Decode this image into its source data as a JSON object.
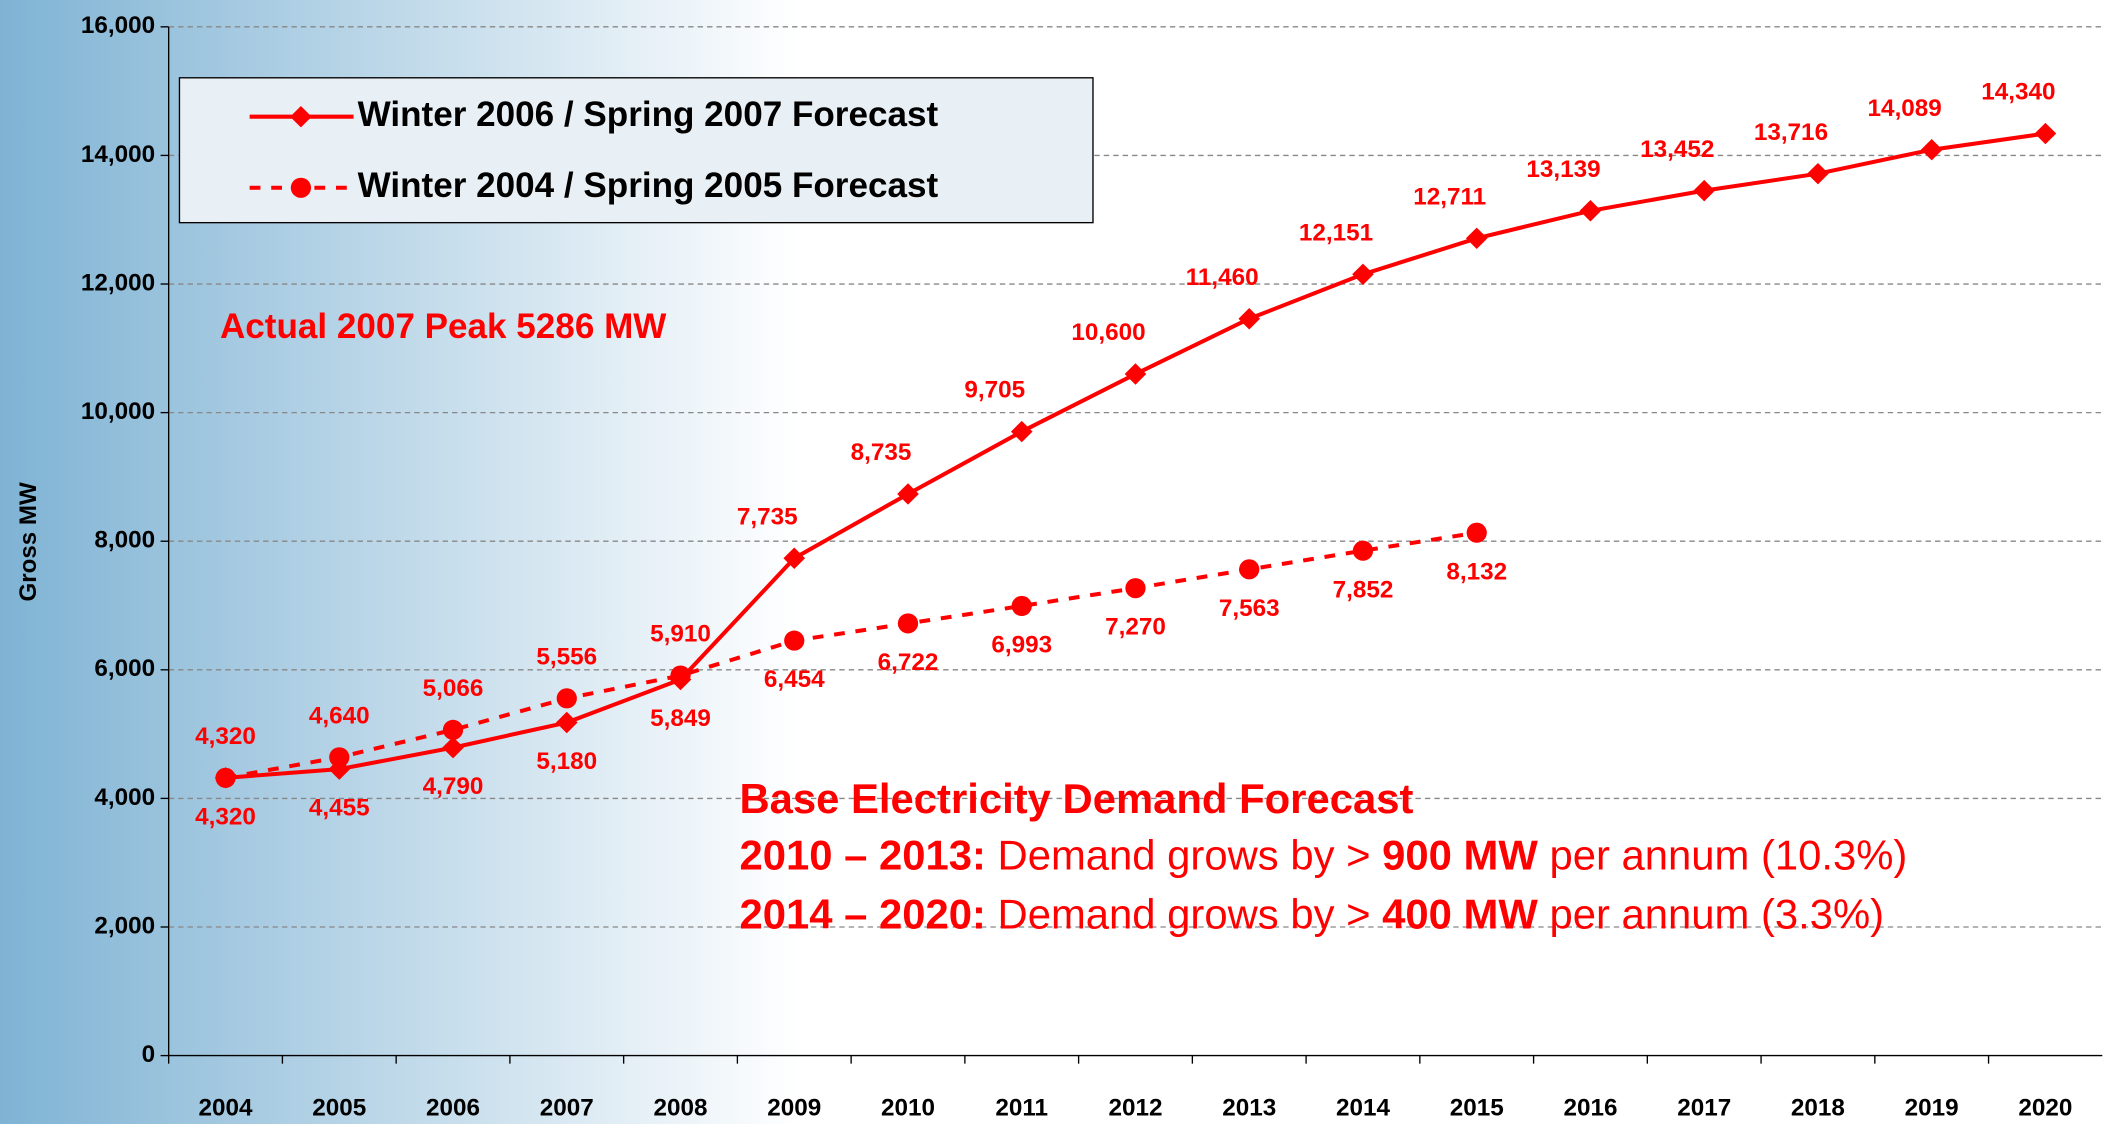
{
  "chart_data": {
    "type": "line",
    "y_label": "Gross MW",
    "categories": [
      "2004",
      "2005",
      "2006",
      "2007",
      "2008",
      "2009",
      "2010",
      "2011",
      "2012",
      "2013",
      "2014",
      "2015",
      "2016",
      "2017",
      "2018",
      "2019",
      "2020"
    ],
    "series": [
      {
        "name": "Winter 2006 / Spring 2007 Forecast",
        "color": "#ff0000",
        "line_style": "solid",
        "marker": "diamond",
        "values": [
          4320,
          4455,
          4790,
          5180,
          5849,
          7735,
          8735,
          9705,
          10600,
          11460,
          12151,
          12711,
          13139,
          13452,
          13716,
          14089,
          14340
        ],
        "value_labels": [
          "4,320",
          "4,455",
          "4,790",
          "5,180",
          "5,849",
          "7,735",
          "8,735",
          "9,705",
          "10,600",
          "11,460",
          "12,151",
          "12,711",
          "13,139",
          "13,452",
          "13,716",
          "14,089",
          "14,340"
        ]
      },
      {
        "name": "Winter 2004 / Spring 2005 Forecast",
        "color": "#ff0000",
        "line_style": "dashed",
        "marker": "circle",
        "values": [
          4320,
          4640,
          5066,
          5556,
          5910,
          6454,
          6722,
          6993,
          7270,
          7563,
          7852,
          8132,
          null,
          null,
          null,
          null,
          null
        ],
        "value_labels": [
          "4,320",
          "4,640",
          "5,066",
          "5,556",
          "5,910",
          "6,454",
          "6,722",
          "6,993",
          "7,270",
          "7,563",
          "7,852",
          "8,132",
          null,
          null,
          null,
          null,
          null
        ]
      }
    ],
    "ylim": [
      0,
      16000
    ],
    "yticks": [
      0,
      {
        "value": 2000,
        "label": "2,000"
      },
      {
        "value": 4000,
        "label": "4,000"
      },
      {
        "value": 6000,
        "label": "6,000"
      },
      {
        "value": 8000,
        "label": "8,000"
      },
      {
        "value": 10000,
        "label": "10,000"
      },
      {
        "value": 12000,
        "label": "12,000"
      },
      {
        "value": 14000,
        "label": "14,000"
      },
      {
        "value": 16000,
        "label": "16,000"
      }
    ],
    "grid": true,
    "legend": "upper left",
    "annotations": {
      "peak_note": "Actual 2007 Peak 5286 MW",
      "forecast_box": {
        "title": "Base Electricity Demand Forecast",
        "lines": [
          [
            {
              "text": "2010 – 2013:",
              "bold": true
            },
            {
              "text": " Demand grows by > ",
              "bold": false
            },
            {
              "text": "900 MW",
              "bold": true
            },
            {
              "text": " per annum (10.3%)",
              "bold": false
            }
          ],
          [
            {
              "text": "2014 – 2020:",
              "bold": true
            },
            {
              "text": " Demand grows by > ",
              "bold": false
            },
            {
              "text": "400 MW",
              "bold": true
            },
            {
              "text": " per annum (3.3%)",
              "bold": false
            }
          ]
        ]
      }
    }
  }
}
